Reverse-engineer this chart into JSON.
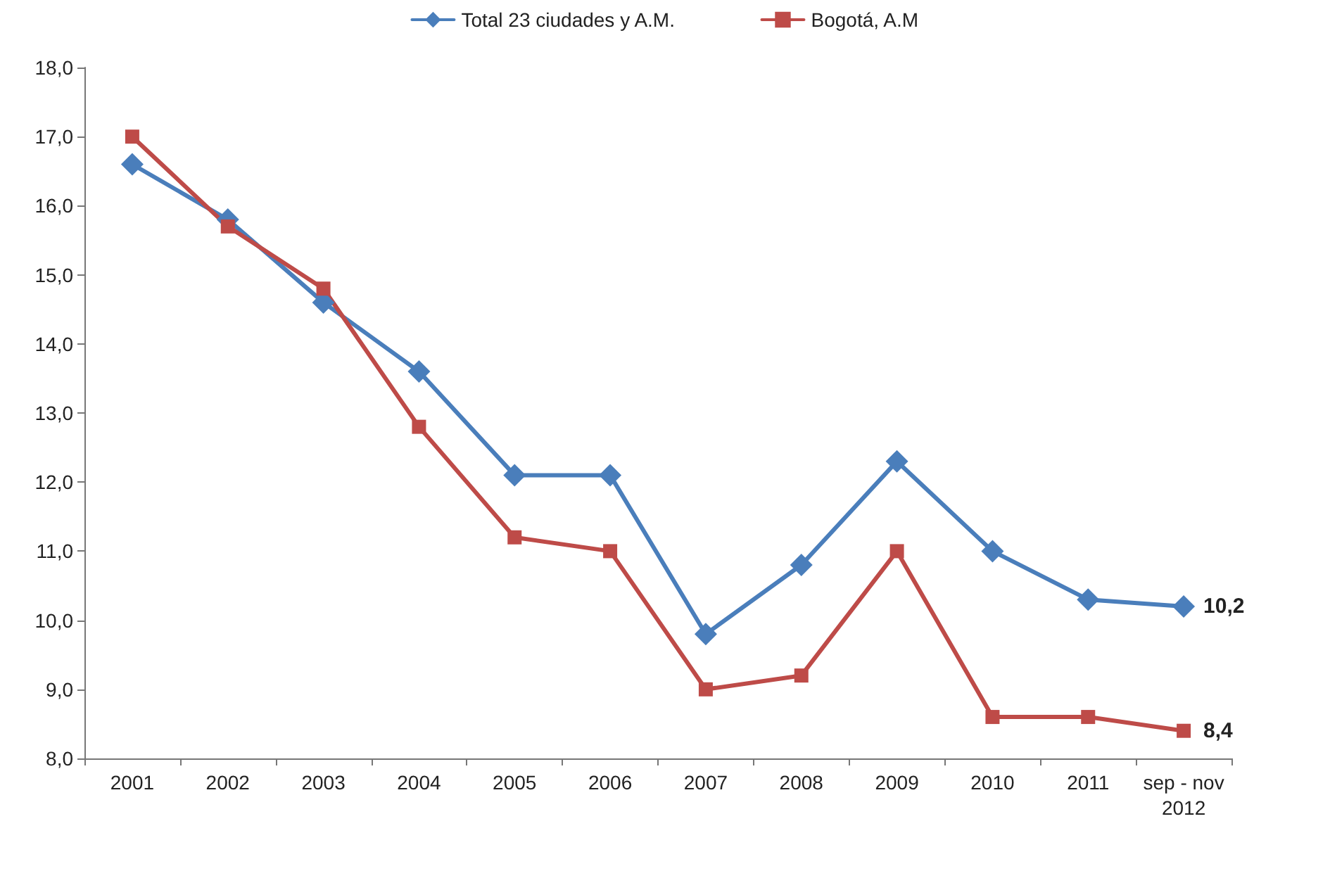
{
  "chart_data": {
    "type": "line",
    "categories": [
      "2001",
      "2002",
      "2003",
      "2004",
      "2005",
      "2006",
      "2007",
      "2008",
      "2009",
      "2010",
      "2011",
      "sep - nov\n2012"
    ],
    "series": [
      {
        "name": "Total 23 ciudades y A.M.",
        "color": "#4a7ebb",
        "marker": "diamond",
        "values": [
          16.6,
          15.8,
          14.6,
          13.6,
          12.1,
          12.1,
          9.8,
          10.8,
          12.3,
          11.0,
          10.3,
          10.2
        ]
      },
      {
        "name": "Bogotá, A.M",
        "color": "#be4b48",
        "marker": "square",
        "values": [
          17.0,
          15.7,
          14.8,
          12.8,
          11.2,
          11.0,
          9.0,
          9.2,
          11.0,
          8.6,
          8.6,
          8.4
        ]
      }
    ],
    "ylim": [
      8,
      18
    ],
    "yticks": [
      {
        "value": 8,
        "label": "8,0"
      },
      {
        "value": 9,
        "label": "9,0"
      },
      {
        "value": 10,
        "label": "10,0"
      },
      {
        "value": 11,
        "label": "11,0"
      },
      {
        "value": 12,
        "label": "12,0"
      },
      {
        "value": 13,
        "label": "13,0"
      },
      {
        "value": 14,
        "label": "14,0"
      },
      {
        "value": 15,
        "label": "15,0"
      },
      {
        "value": 16,
        "label": "16,0"
      },
      {
        "value": 17,
        "label": "17,0"
      },
      {
        "value": 18,
        "label": "18,0"
      }
    ],
    "annotations": [
      {
        "text": "10,2",
        "x": "sep - nov\n2012",
        "y": 10.2
      },
      {
        "text": "8,4",
        "x": "sep - nov\n2012",
        "y": 8.4
      }
    ],
    "grid": false,
    "legend": "top",
    "line_style": "solid"
  }
}
